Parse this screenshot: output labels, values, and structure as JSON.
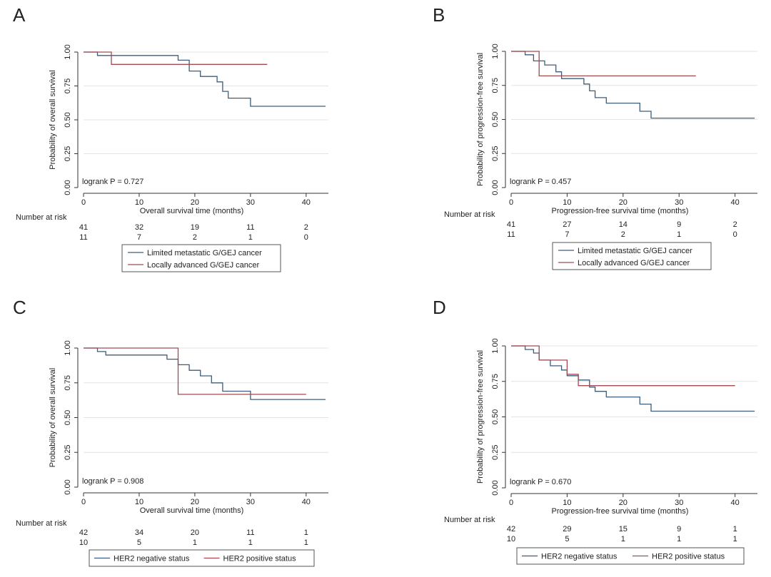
{
  "colors": {
    "series_1": "#3d5d7a",
    "series_2": "#a24a50"
  },
  "chart_data": [
    {
      "panel": "A",
      "type": "line",
      "step": true,
      "ylabel": "Probability of overall survival",
      "xlabel": "Overall survival time (months)",
      "xlim": [
        0,
        44
      ],
      "ylim": [
        0,
        1
      ],
      "xticks": [
        0,
        10,
        20,
        30,
        40
      ],
      "yticks": [
        0,
        0.25,
        0.5,
        0.75,
        1
      ],
      "ytick_labels": [
        "0.00",
        "0.25",
        "0.50",
        "0.75",
        "1.00"
      ],
      "grid": true,
      "annotation": "logrank P = 0.727",
      "risk_title": "Number at risk",
      "risk_table": [
        [
          41,
          32,
          19,
          11,
          2
        ],
        [
          11,
          7,
          2,
          1,
          0
        ]
      ],
      "legend": [
        "Limited metastatic G/GEJ cancer",
        "Locally advanced G/GEJ cancer"
      ],
      "legend_layout": "vertical",
      "series": [
        {
          "name": "Limited metastatic G/GEJ cancer",
          "x": [
            0,
            2.5,
            5,
            15,
            17,
            19,
            21,
            22,
            24,
            25,
            26,
            30,
            43.5
          ],
          "y": [
            1,
            0.975,
            0.975,
            0.975,
            0.94,
            0.86,
            0.82,
            0.82,
            0.78,
            0.71,
            0.66,
            0.6,
            0.6
          ]
        },
        {
          "name": "Locally advanced G/GEJ cancer",
          "x": [
            0,
            5,
            33
          ],
          "y": [
            1,
            0.909,
            0.909
          ]
        }
      ]
    },
    {
      "panel": "B",
      "type": "line",
      "step": true,
      "ylabel": "Probability of progression-free survival",
      "xlabel": "Progression-free survival time (months)",
      "xlim": [
        0,
        44
      ],
      "ylim": [
        0,
        1
      ],
      "xticks": [
        0,
        10,
        20,
        30,
        40
      ],
      "yticks": [
        0,
        0.25,
        0.5,
        0.75,
        1
      ],
      "ytick_labels": [
        "0.00",
        "0.25",
        "0.50",
        "0.75",
        "1.00"
      ],
      "grid": true,
      "annotation": "logrank P = 0.457",
      "risk_title": "Number at risk",
      "risk_table": [
        [
          41,
          27,
          14,
          9,
          2
        ],
        [
          11,
          7,
          2,
          1,
          0
        ]
      ],
      "legend": [
        "Limited metastatic G/GEJ cancer",
        "Locally advanced G/GEJ cancer"
      ],
      "legend_layout": "vertical",
      "series": [
        {
          "name": "Limited metastatic G/GEJ cancer",
          "x": [
            0,
            2.5,
            4,
            6,
            8,
            9,
            10,
            13,
            14,
            15,
            17,
            23,
            25,
            43.5
          ],
          "y": [
            1,
            0.975,
            0.93,
            0.9,
            0.85,
            0.8,
            0.8,
            0.76,
            0.71,
            0.66,
            0.62,
            0.56,
            0.51,
            0.51
          ]
        },
        {
          "name": "Locally advanced G/GEJ cancer",
          "x": [
            0,
            4.5,
            5,
            33
          ],
          "y": [
            1,
            1,
            0.82,
            0.82
          ]
        }
      ]
    },
    {
      "panel": "C",
      "type": "line",
      "step": true,
      "ylabel": "Probability of overall survival",
      "xlabel": "Overall survival time (months)",
      "xlim": [
        0,
        44
      ],
      "ylim": [
        0,
        1
      ],
      "xticks": [
        0,
        10,
        20,
        30,
        40
      ],
      "yticks": [
        0,
        0.25,
        0.5,
        0.75,
        1
      ],
      "ytick_labels": [
        "0.00",
        "0.25",
        "0.50",
        "0.75",
        "1.00"
      ],
      "grid": true,
      "annotation": "logrank P = 0.908",
      "risk_title": "Number at risk",
      "risk_table": [
        [
          42,
          34,
          20,
          11,
          1
        ],
        [
          10,
          5,
          1,
          1,
          1
        ]
      ],
      "legend": [
        "HER2 negative status",
        "HER2 positive status"
      ],
      "legend_layout": "horizontal",
      "series": [
        {
          "name": "HER2 negative status",
          "x": [
            0,
            2.5,
            4,
            11,
            15,
            17,
            19,
            21,
            23,
            25,
            30,
            43.5
          ],
          "y": [
            1,
            0.975,
            0.95,
            0.95,
            0.92,
            0.88,
            0.84,
            0.8,
            0.75,
            0.69,
            0.63,
            0.63
          ]
        },
        {
          "name": "HER2 positive status",
          "x": [
            0,
            17,
            40
          ],
          "y": [
            1,
            0.667,
            0.667
          ]
        }
      ]
    },
    {
      "panel": "D",
      "type": "line",
      "step": true,
      "ylabel": "Probability of progression-free survival",
      "xlabel": "Progression-free survival time (months)",
      "xlim": [
        0,
        44
      ],
      "ylim": [
        0,
        1
      ],
      "xticks": [
        0,
        10,
        20,
        30,
        40
      ],
      "yticks": [
        0,
        0.25,
        0.5,
        0.75,
        1
      ],
      "ytick_labels": [
        "0.00",
        "0.25",
        "0.50",
        "0.75",
        "1.00"
      ],
      "grid": true,
      "annotation": "logrank P = 0.670",
      "risk_title": "Number at risk",
      "risk_table": [
        [
          42,
          29,
          15,
          9,
          1
        ],
        [
          10,
          5,
          1,
          1,
          1
        ]
      ],
      "legend": [
        "HER2 negative status",
        "HER2 positive status"
      ],
      "legend_layout": "horizontal",
      "series": [
        {
          "name": "HER2 negative status",
          "x": [
            0,
            2.5,
            4,
            5,
            7,
            9,
            10,
            12,
            14,
            15,
            17,
            23,
            25,
            43.5
          ],
          "y": [
            1,
            0.975,
            0.95,
            0.9,
            0.86,
            0.83,
            0.79,
            0.76,
            0.71,
            0.68,
            0.64,
            0.59,
            0.54,
            0.54
          ]
        },
        {
          "name": "HER2 positive status",
          "x": [
            0,
            5,
            10,
            12,
            40
          ],
          "y": [
            1,
            0.9,
            0.8,
            0.72,
            0.72
          ]
        }
      ]
    }
  ]
}
